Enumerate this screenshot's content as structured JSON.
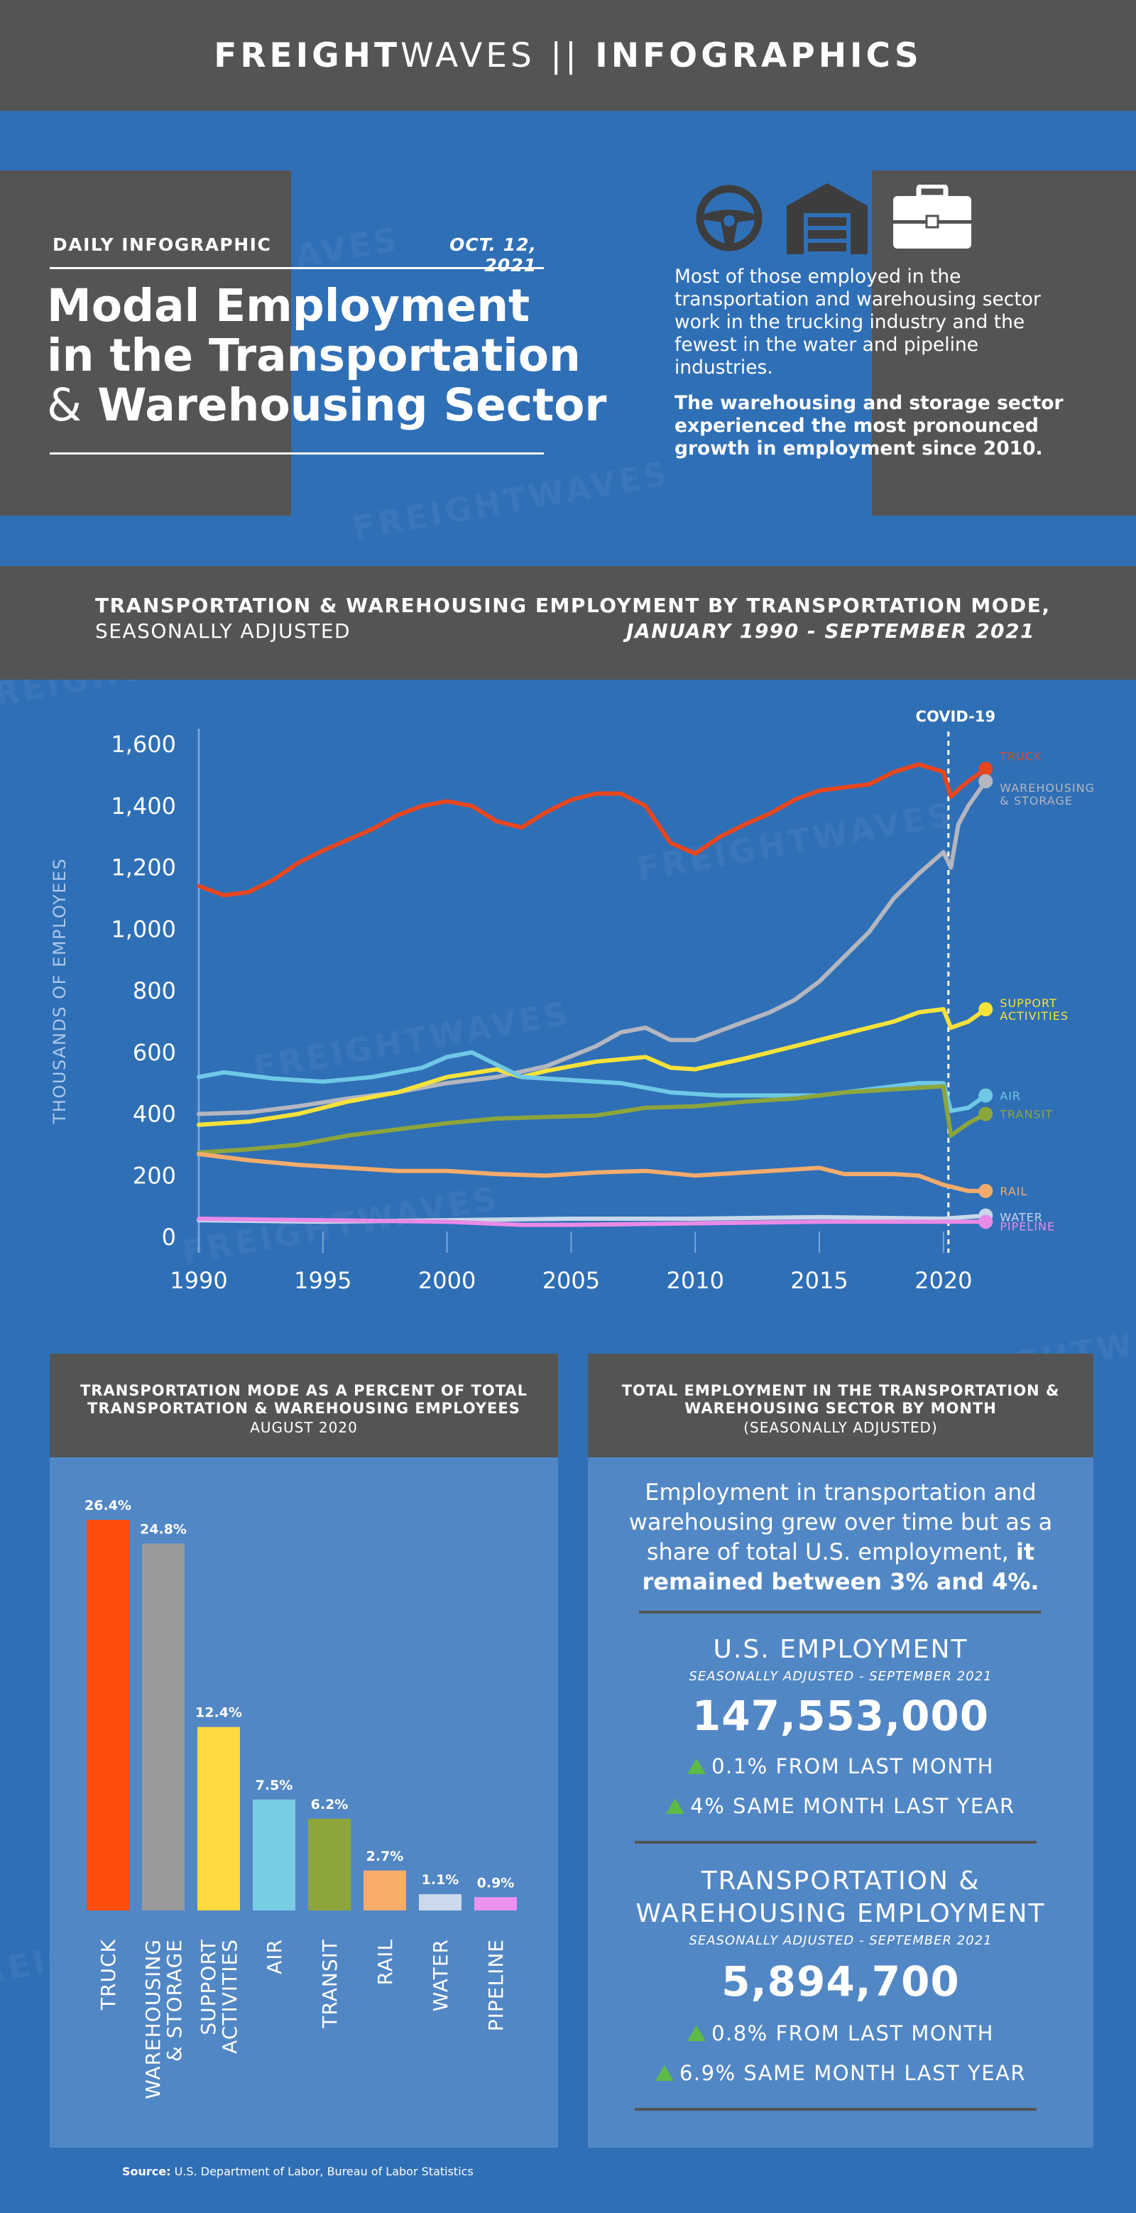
{
  "header": {
    "brand_bold": "FREIGHT",
    "brand_light": "WAVES",
    "separator": "||",
    "section": "INFOGRAPHICS"
  },
  "intro": {
    "kicker": "DAILY INFOGRAPHIC",
    "date": "OCT. 12, 2021",
    "title_line1": "Modal Employment",
    "title_line2": "in the Transportation",
    "title_amp": "&",
    "title_line3": "Warehousing Sector",
    "summary": "Most of those employed in the transportation and warehousing sector work in the trucking industry and the fewest in the water and pipeline industries.",
    "summary_bold": "The warehousing and storage sector experienced the most pronounced growth in employment since 2010.",
    "icons": [
      "steering-wheel-icon",
      "warehouse-icon",
      "briefcase-icon"
    ]
  },
  "watermark": "FREIGHTWAVES",
  "colors": {
    "truck": "#e8461e",
    "warehousing": "#b4b6c0",
    "support": "#f7e23a",
    "air": "#6fc8e6",
    "transit": "#8ca63c",
    "rail": "#f3ab6b",
    "water": "#c8d8ea",
    "pipeline": "#e98ae6",
    "background": "#2f6fb6",
    "panel": "#5287c5",
    "dark": "#545454"
  },
  "main_chart": {
    "title_line1": "TRANSPORTATION & WAREHOUSING EMPLOYMENT BY TRANSPORTATION MODE,",
    "title_line2_left": "SEASONALLY ADJUSTED",
    "title_line2_right": "JANUARY 1990 - SEPTEMBER 2021",
    "annotation": "COVID-19"
  },
  "bar_chart": {
    "title": "TRANSPORTATION MODE AS A PERCENT OF TOTAL TRANSPORTATION & WAREHOUSING EMPLOYEES",
    "subtitle": "AUGUST 2020"
  },
  "employment": {
    "title": "TOTAL EMPLOYMENT IN THE TRANSPORTATION & WAREHOUSING SECTOR BY MONTH",
    "subtitle": "(SEASONALLY ADJUSTED)",
    "text": "Employment in transportation and warehousing grew over time but as a share of total U.S. employment,",
    "text_bold": "it remained between 3% and 4%.",
    "us": {
      "heading": "U.S. EMPLOYMENT",
      "sub": "SEASONALLY ADJUSTED - SEPTEMBER 2021",
      "value": "147,553,000",
      "change_month": "0.1% FROM LAST MONTH",
      "change_year": "4% SAME MONTH LAST YEAR"
    },
    "tw": {
      "heading_line1": "TRANSPORTATION &",
      "heading_line2": "WAREHOUSING EMPLOYMENT",
      "sub": "SEASONALLY ADJUSTED - SEPTEMBER 2021",
      "value": "5,894,700",
      "change_month": "0.8% FROM LAST MONTH",
      "change_year": "6.9% SAME MONTH LAST YEAR"
    }
  },
  "source": {
    "label": "Source:",
    "text": "U.S. Department of Labor, Bureau of Labor Statistics"
  },
  "chart_data": [
    {
      "type": "line",
      "title": "TRANSPORTATION & WAREHOUSING EMPLOYMENT BY TRANSPORTATION MODE, SEASONALLY ADJUSTED",
      "subtitle": "JANUARY 1990 - SEPTEMBER 2021",
      "xlabel": "",
      "ylabel": "THOUSANDS OF EMPLOYEES",
      "xlim": [
        1990,
        2021.75
      ],
      "ylim": [
        0,
        1600
      ],
      "x_ticks": [
        1990,
        1995,
        2000,
        2005,
        2010,
        2015,
        2020
      ],
      "y_ticks": [
        0,
        200,
        400,
        600,
        800,
        1000,
        1200,
        1400,
        1600
      ],
      "x_tick_labels": [
        "1990",
        "1995",
        "2000",
        "2005",
        "2010",
        "2015",
        "2020"
      ],
      "y_tick_labels": [
        "0",
        "200",
        "400",
        "600",
        "800",
        "1,000",
        "1,200",
        "1,400",
        "1,600"
      ],
      "grid": false,
      "annotations": [
        {
          "x": 2020.2,
          "text": "COVID-19",
          "style": "dashed-vertical"
        }
      ],
      "series": [
        {
          "name": "TRUCK",
          "color": "#e8461e",
          "points": [
            [
              1990,
              1140
            ],
            [
              1991,
              1110
            ],
            [
              1992,
              1120
            ],
            [
              1993,
              1160
            ],
            [
              1994,
              1215
            ],
            [
              1995,
              1255
            ],
            [
              1996,
              1290
            ],
            [
              1997,
              1325
            ],
            [
              1998,
              1370
            ],
            [
              1999,
              1400
            ],
            [
              2000,
              1415
            ],
            [
              2001,
              1400
            ],
            [
              2002,
              1350
            ],
            [
              2003,
              1330
            ],
            [
              2004,
              1380
            ],
            [
              2005,
              1420
            ],
            [
              2006,
              1440
            ],
            [
              2007,
              1440
            ],
            [
              2008,
              1400
            ],
            [
              2009,
              1280
            ],
            [
              2010,
              1245
            ],
            [
              2011,
              1300
            ],
            [
              2012,
              1340
            ],
            [
              2013,
              1375
            ],
            [
              2014,
              1420
            ],
            [
              2015,
              1450
            ],
            [
              2016,
              1460
            ],
            [
              2017,
              1470
            ],
            [
              2018,
              1510
            ],
            [
              2019,
              1535
            ],
            [
              2020,
              1510
            ],
            [
              2020.3,
              1430
            ],
            [
              2020.7,
              1460
            ],
            [
              2021,
              1480
            ],
            [
              2021.7,
              1520
            ]
          ]
        },
        {
          "name": "WAREHOUSING & STORAGE",
          "color": "#b4b6c0",
          "points": [
            [
              1990,
              400
            ],
            [
              1992,
              405
            ],
            [
              1994,
              425
            ],
            [
              1996,
              450
            ],
            [
              1998,
              470
            ],
            [
              2000,
              500
            ],
            [
              2002,
              520
            ],
            [
              2004,
              555
            ],
            [
              2006,
              620
            ],
            [
              2007,
              665
            ],
            [
              2008,
              680
            ],
            [
              2009,
              640
            ],
            [
              2010,
              640
            ],
            [
              2011,
              670
            ],
            [
              2012,
              700
            ],
            [
              2013,
              730
            ],
            [
              2014,
              770
            ],
            [
              2015,
              830
            ],
            [
              2016,
              910
            ],
            [
              2017,
              990
            ],
            [
              2018,
              1100
            ],
            [
              2019,
              1180
            ],
            [
              2020,
              1250
            ],
            [
              2020.3,
              1200
            ],
            [
              2020.6,
              1340
            ],
            [
              2021,
              1400
            ],
            [
              2021.7,
              1480
            ]
          ]
        },
        {
          "name": "SUPPORT ACTIVITIES",
          "color": "#f7e23a",
          "points": [
            [
              1990,
              365
            ],
            [
              1992,
              375
            ],
            [
              1994,
              400
            ],
            [
              1996,
              440
            ],
            [
              1998,
              470
            ],
            [
              2000,
              520
            ],
            [
              2002,
              545
            ],
            [
              2003,
              520
            ],
            [
              2004,
              540
            ],
            [
              2006,
              570
            ],
            [
              2008,
              585
            ],
            [
              2009,
              550
            ],
            [
              2010,
              545
            ],
            [
              2012,
              580
            ],
            [
              2014,
              620
            ],
            [
              2016,
              660
            ],
            [
              2018,
              700
            ],
            [
              2019,
              730
            ],
            [
              2020,
              740
            ],
            [
              2020.3,
              680
            ],
            [
              2021,
              700
            ],
            [
              2021.7,
              740
            ]
          ]
        },
        {
          "name": "AIR",
          "color": "#6fc8e6",
          "points": [
            [
              1990,
              520
            ],
            [
              1991,
              535
            ],
            [
              1993,
              515
            ],
            [
              1995,
              505
            ],
            [
              1997,
              520
            ],
            [
              1999,
              550
            ],
            [
              2000,
              585
            ],
            [
              2001,
              600
            ],
            [
              2002,
              560
            ],
            [
              2003,
              520
            ],
            [
              2005,
              510
            ],
            [
              2007,
              500
            ],
            [
              2009,
              470
            ],
            [
              2011,
              460
            ],
            [
              2013,
              460
            ],
            [
              2015,
              460
            ],
            [
              2017,
              480
            ],
            [
              2019,
              500
            ],
            [
              2020,
              500
            ],
            [
              2020.3,
              410
            ],
            [
              2021,
              420
            ],
            [
              2021.7,
              460
            ]
          ]
        },
        {
          "name": "TRANSIT",
          "color": "#8ca63c",
          "points": [
            [
              1990,
              275
            ],
            [
              1992,
              285
            ],
            [
              1994,
              300
            ],
            [
              1996,
              330
            ],
            [
              1998,
              350
            ],
            [
              2000,
              370
            ],
            [
              2002,
              385
            ],
            [
              2004,
              390
            ],
            [
              2006,
              395
            ],
            [
              2008,
              420
            ],
            [
              2010,
              425
            ],
            [
              2012,
              440
            ],
            [
              2014,
              450
            ],
            [
              2016,
              470
            ],
            [
              2018,
              480
            ],
            [
              2020,
              490
            ],
            [
              2020.3,
              330
            ],
            [
              2021,
              370
            ],
            [
              2021.7,
              400
            ]
          ]
        },
        {
          "name": "RAIL",
          "color": "#f3ab6b",
          "points": [
            [
              1990,
              270
            ],
            [
              1992,
              250
            ],
            [
              1994,
              235
            ],
            [
              1996,
              225
            ],
            [
              1998,
              215
            ],
            [
              2000,
              215
            ],
            [
              2002,
              205
            ],
            [
              2004,
              200
            ],
            [
              2006,
              210
            ],
            [
              2008,
              215
            ],
            [
              2010,
              200
            ],
            [
              2012,
              210
            ],
            [
              2014,
              220
            ],
            [
              2015,
              225
            ],
            [
              2016,
              205
            ],
            [
              2018,
              205
            ],
            [
              2019,
              200
            ],
            [
              2020,
              170
            ],
            [
              2021,
              150
            ],
            [
              2021.7,
              150
            ]
          ]
        },
        {
          "name": "WATER",
          "color": "#c8d8ea",
          "points": [
            [
              1990,
              55
            ],
            [
              1995,
              50
            ],
            [
              2000,
              55
            ],
            [
              2005,
              60
            ],
            [
              2010,
              60
            ],
            [
              2015,
              65
            ],
            [
              2020,
              60
            ],
            [
              2021.7,
              70
            ]
          ]
        },
        {
          "name": "PIPELINE",
          "color": "#e98ae6",
          "points": [
            [
              1990,
              60
            ],
            [
              1995,
              55
            ],
            [
              2000,
              50
            ],
            [
              2003,
              40
            ],
            [
              2005,
              40
            ],
            [
              2010,
              45
            ],
            [
              2015,
              50
            ],
            [
              2020,
              50
            ],
            [
              2021.7,
              50
            ]
          ]
        }
      ]
    },
    {
      "type": "bar",
      "title": "TRANSPORTATION MODE AS A PERCENT OF TOTAL TRANSPORTATION & WAREHOUSING EMPLOYEES",
      "subtitle": "AUGUST 2020",
      "categories": [
        "TRUCK",
        "WAREHOUSING & STORAGE",
        "SUPPORT ACTIVITIES",
        "AIR",
        "TRANSIT",
        "RAIL",
        "WATER",
        "PIPELINE"
      ],
      "values": [
        26.4,
        24.8,
        12.4,
        7.5,
        6.2,
        2.7,
        1.1,
        0.9
      ],
      "value_labels": [
        "26.4%",
        "24.8%",
        "12.4%",
        "7.5%",
        "6.2%",
        "2.7%",
        "1.1%",
        "0.9%"
      ],
      "colors": [
        "#ff4d0d",
        "#9a9a9a",
        "#ffd940",
        "#78cde3",
        "#8ca63c",
        "#f8ad6b",
        "#cad9ec",
        "#ec93f0"
      ],
      "ylim": [
        0,
        26.4
      ]
    }
  ]
}
